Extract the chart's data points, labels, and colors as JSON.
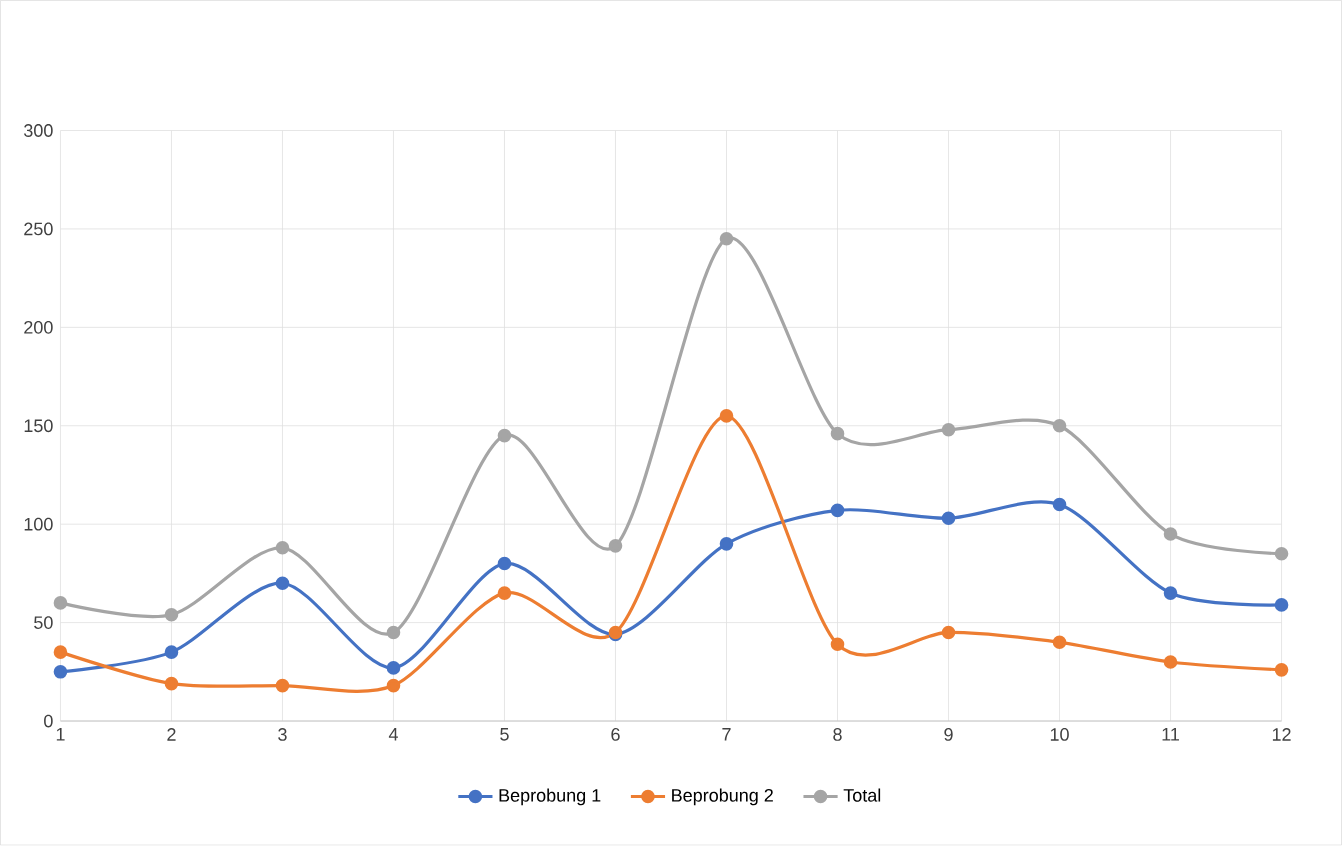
{
  "chart_data": {
    "type": "line",
    "x": [
      1,
      2,
      3,
      4,
      5,
      6,
      7,
      8,
      9,
      10,
      11,
      12
    ],
    "series": [
      {
        "name": "Beprobung 1",
        "color": "#4472c4",
        "values": [
          25,
          35,
          70,
          27,
          80,
          44,
          90,
          107,
          103,
          110,
          65,
          59
        ]
      },
      {
        "name": "Beprobung 2",
        "color": "#ed7d31",
        "values": [
          35,
          19,
          18,
          18,
          65,
          45,
          155,
          39,
          45,
          40,
          30,
          26
        ]
      },
      {
        "name": "Total",
        "color": "#a5a5a5",
        "values": [
          60,
          54,
          88,
          45,
          145,
          89,
          245,
          146,
          148,
          150,
          95,
          85
        ]
      }
    ],
    "xlim": [
      1,
      12
    ],
    "xticks": [
      1,
      2,
      3,
      4,
      5,
      6,
      7,
      8,
      9,
      10,
      11,
      12
    ],
    "ylim": [
      0,
      300
    ],
    "yticks": [
      0,
      50,
      100,
      150,
      200,
      250,
      300
    ],
    "grid": true,
    "legend": "bottom",
    "marker": "circle",
    "line_style": "solid"
  }
}
